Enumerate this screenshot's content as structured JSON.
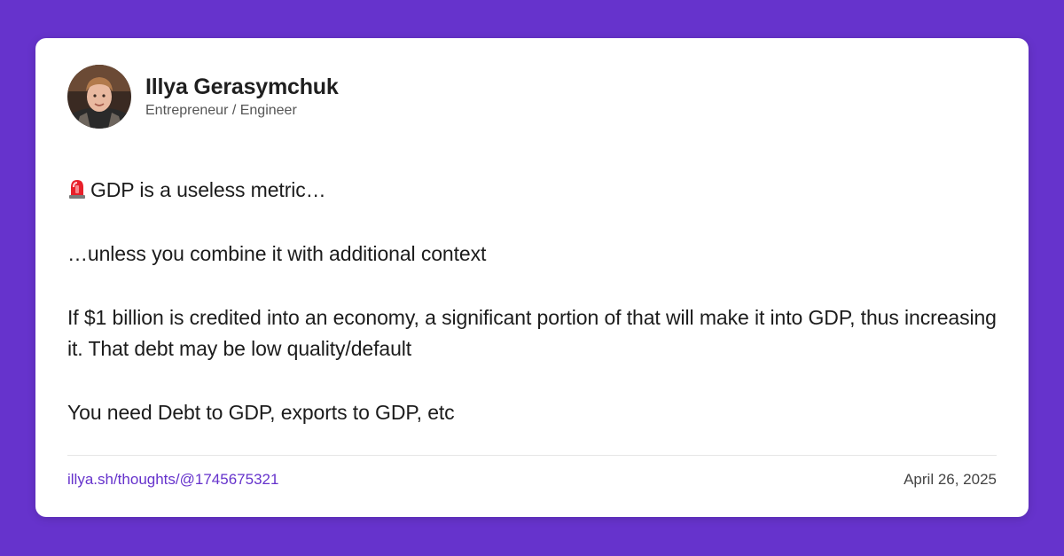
{
  "author": {
    "name": "Illya Gerasymchuk",
    "title": "Entrepreneur / Engineer",
    "avatar_icon": "profile-photo"
  },
  "post": {
    "lead_icon": "rotating-light-emoji",
    "paragraphs": [
      "GDP is a useless metric…",
      "…unless you combine it with additional context",
      "If $1 billion is credited into an economy, a significant portion of that will make it into GDP, thus increasing it. That debt may be low quality/default",
      "You need Debt to GDP, exports to GDP, etc"
    ]
  },
  "footer": {
    "link_text": "illya.sh/thoughts/@1745675321",
    "date": "April 26, 2025"
  },
  "colors": {
    "background": "#6633cc",
    "card": "#ffffff",
    "link": "#6633cc",
    "text": "#1c1c1c"
  }
}
